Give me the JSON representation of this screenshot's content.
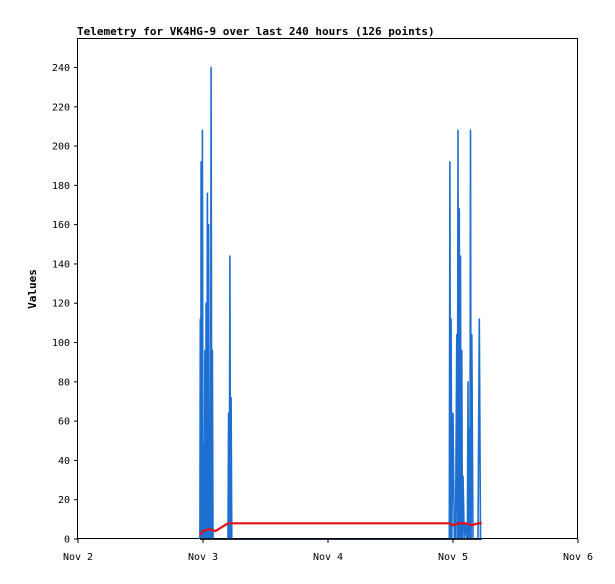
{
  "chart_data": {
    "type": "line",
    "title": "Telemetry for VK4HG-9 over last 240 hours (126 points)",
    "xlabel": "",
    "ylabel": "Values",
    "x_unit": "days since Nov 2 00:00",
    "xlim": [
      0,
      4
    ],
    "ylim": [
      0,
      255
    ],
    "x_ticks": [
      {
        "value": 0,
        "label": "Nov 2"
      },
      {
        "value": 1,
        "label": "Nov 3"
      },
      {
        "value": 2,
        "label": "Nov 4"
      },
      {
        "value": 3,
        "label": "Nov 5"
      },
      {
        "value": 4,
        "label": "Nov 6"
      }
    ],
    "y_ticks": [
      0,
      20,
      40,
      60,
      80,
      100,
      120,
      140,
      160,
      180,
      200,
      220,
      240
    ],
    "grid": false,
    "legend": "none",
    "series": [
      {
        "color": "#1f6fd1",
        "x": [
          0.975,
          0.978,
          0.982,
          0.985,
          0.99,
          0.995,
          1.0,
          1.005,
          1.01,
          1.015,
          1.02,
          1.025,
          1.03,
          1.035,
          1.04,
          1.045,
          1.05,
          1.055,
          1.06,
          1.065,
          1.07,
          1.075,
          1.08,
          1.085,
          1.09,
          1.095,
          1.1,
          1.11,
          1.12,
          1.13,
          1.14,
          1.15,
          1.16,
          1.17,
          1.18,
          1.19,
          1.2,
          1.205,
          1.21,
          1.215,
          1.22,
          1.225,
          1.23,
          2.97,
          2.975,
          2.98,
          2.985,
          2.99,
          3.0,
          3.01,
          3.02,
          3.03,
          3.035,
          3.04,
          3.045,
          3.05,
          3.055,
          3.06,
          3.065,
          3.07,
          3.075,
          3.08,
          3.09,
          3.1,
          3.11,
          3.115,
          3.12,
          3.125,
          3.13,
          3.135,
          3.14,
          3.145,
          3.15,
          3.16,
          3.17,
          3.18,
          3.19,
          3.2,
          3.21,
          3.22,
          3.23
        ],
        "values": [
          0,
          112,
          0,
          192,
          0,
          208,
          0,
          48,
          0,
          96,
          0,
          120,
          0,
          176,
          0,
          160,
          0,
          16,
          0,
          240,
          0,
          96,
          0,
          0,
          0,
          0,
          0,
          0,
          0,
          0,
          0,
          0,
          0,
          0,
          0,
          0,
          0,
          64,
          0,
          144,
          0,
          72,
          0,
          0,
          192,
          0,
          112,
          0,
          64,
          0,
          0,
          104,
          0,
          208,
          0,
          168,
          0,
          144,
          0,
          96,
          0,
          32,
          0,
          8,
          0,
          0,
          80,
          0,
          56,
          0,
          208,
          0,
          104,
          0,
          0,
          0,
          0,
          0,
          112,
          0,
          0
        ]
      },
      {
        "color": "#e0101a",
        "x": [
          0.975,
          1.0,
          1.05,
          1.1,
          1.2,
          1.23,
          1.5,
          2.0,
          2.5,
          2.97,
          3.0,
          3.05,
          3.1,
          3.15,
          3.2,
          3.23
        ],
        "values": [
          2,
          4,
          5,
          4,
          8,
          8,
          8,
          8,
          8,
          8,
          7,
          8,
          8,
          7,
          8,
          8
        ]
      },
      {
        "color": "#000000",
        "x": [
          0.975,
          1.0,
          1.5,
          2.0,
          2.5,
          3.0,
          3.23
        ],
        "values": [
          0,
          0,
          0,
          0,
          0,
          0,
          0
        ]
      }
    ]
  }
}
